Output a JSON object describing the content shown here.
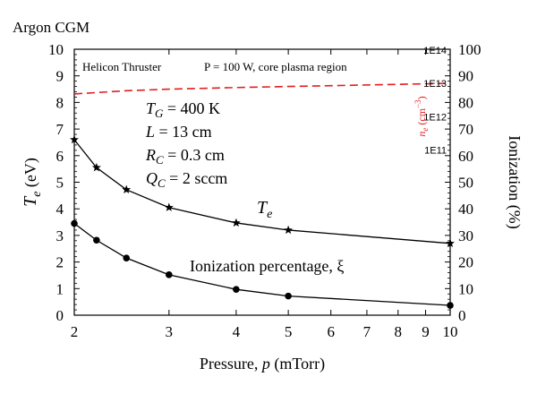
{
  "figure_title": "Argon CGM",
  "annotations": {
    "thruster": "Helicon Thruster",
    "conditions": "P = 100 W, core plasma region",
    "params": [
      {
        "sym": "T",
        "sub": "G",
        "val": " = 400 K"
      },
      {
        "sym": "L",
        "sub": "",
        "val": " = 13 cm"
      },
      {
        "sym": "R",
        "sub": "C",
        "val": " = 0.3 cm"
      },
      {
        "sym": "Q",
        "sub": "C",
        "val": " = 2 sccm"
      }
    ],
    "te_curve_label": "T",
    "te_curve_label_sub": "e",
    "ionization_label": "Ionization percentage, ξ"
  },
  "ne_axis": {
    "label": "n",
    "label_sub": "e",
    "label_units": " (cm",
    "label_units_sup": "−3",
    "label_units_close": ")",
    "ticks": [
      "1E14",
      "1E13",
      "1E12",
      "1E11"
    ],
    "tick_values": [
      100,
      87.5,
      75,
      62.5
    ],
    "color": "#e02020"
  },
  "chart_data": {
    "type": "line",
    "xlabel": "Pressure, p (mTorr)",
    "xlabel_pre": "Pressure, ",
    "xlabel_var": "p",
    "xlabel_post": " (mTorr)",
    "x_scale": "log",
    "xlim": [
      2,
      10
    ],
    "x_ticks": [
      2,
      3,
      4,
      5,
      6,
      7,
      8,
      9,
      10
    ],
    "left_axis": {
      "label_sym": "T",
      "label_sub": "e",
      "label_unit": " (eV)",
      "ylim": [
        0,
        10
      ],
      "ticks": [
        0,
        1,
        2,
        3,
        4,
        5,
        6,
        7,
        8,
        9,
        10
      ]
    },
    "right_axis": {
      "label": "Ionization (%)",
      "ylim": [
        0,
        100
      ],
      "ticks": [
        0,
        10,
        20,
        30,
        40,
        50,
        60,
        70,
        80,
        90,
        100
      ]
    },
    "series": [
      {
        "axis": "left",
        "marker": "star",
        "color": "#000000",
        "x": [
          2,
          2.2,
          2.5,
          3,
          4,
          5,
          10
        ],
        "y": [
          6.6,
          5.55,
          4.72,
          4.05,
          3.47,
          3.2,
          2.7
        ]
      },
      {
        "axis": "right",
        "marker": "circle",
        "color": "#000000",
        "x": [
          2,
          2.2,
          2.5,
          3,
          4,
          5,
          10
        ],
        "y": [
          34.5,
          28.2,
          21.5,
          15.2,
          9.7,
          7.2,
          3.7
        ]
      },
      {
        "axis": "right",
        "marker": "none",
        "style": "dashed",
        "color": "#e02020",
        "x": [
          2,
          2.5,
          3,
          4,
          5,
          6,
          8,
          10
        ],
        "y": [
          83.2,
          84.4,
          85.0,
          85.6,
          86.0,
          86.3,
          86.8,
          87.2
        ]
      }
    ]
  }
}
